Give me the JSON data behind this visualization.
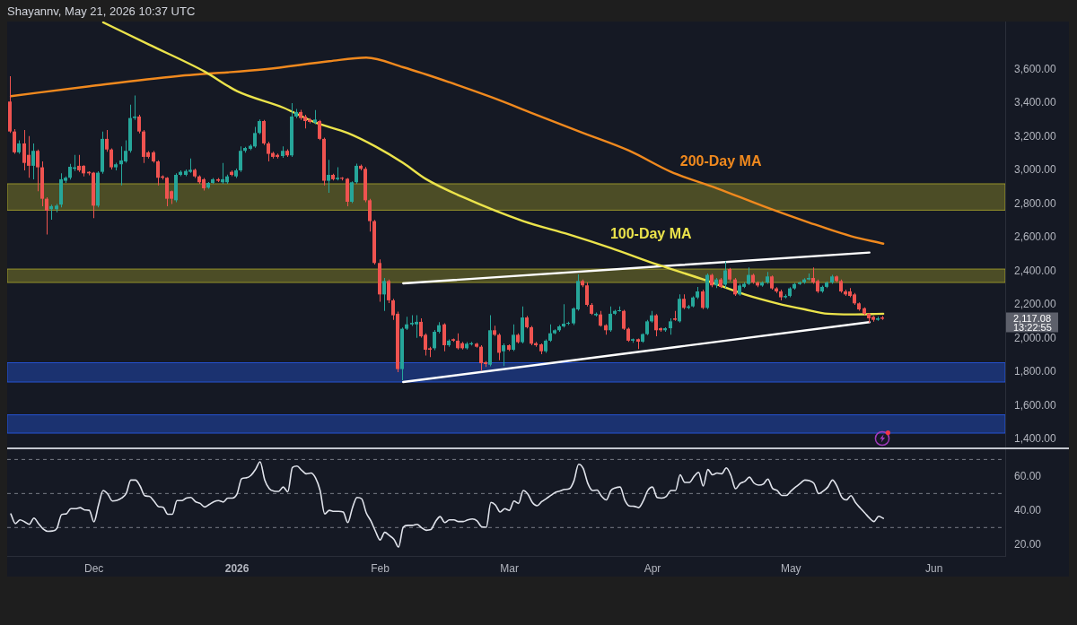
{
  "chart_data": [
    {
      "type": "candlestick",
      "x": [
        "2025-11-13",
        "2025-11-14",
        "2025-11-15",
        "2025-11-16",
        "2025-11-17",
        "2025-11-18",
        "2025-11-19",
        "2025-11-20",
        "2025-11-21",
        "2025-11-22",
        "2025-11-23",
        "2025-11-24",
        "2025-11-25",
        "2025-11-26",
        "2025-11-27",
        "2025-11-28",
        "2025-11-29",
        "2025-11-30",
        "2025-12-01",
        "2025-12-02",
        "2025-12-03",
        "2025-12-04",
        "2025-12-05",
        "2025-12-06",
        "2025-12-07",
        "2025-12-08",
        "2025-12-09",
        "2025-12-10",
        "2025-12-11",
        "2025-12-12",
        "2025-12-13",
        "2025-12-14",
        "2025-12-15",
        "2025-12-16",
        "2025-12-17",
        "2025-12-18",
        "2025-12-19",
        "2025-12-20",
        "2025-12-21",
        "2025-12-22",
        "2025-12-23",
        "2025-12-24",
        "2025-12-25",
        "2025-12-26",
        "2025-12-27",
        "2025-12-28",
        "2025-12-29",
        "2025-12-30",
        "2025-12-31",
        "2026-01-01",
        "2026-01-02",
        "2026-01-03",
        "2026-01-04",
        "2026-01-05",
        "2026-01-06",
        "2026-01-07",
        "2026-01-08",
        "2026-01-09",
        "2026-01-10",
        "2026-01-11",
        "2026-01-12",
        "2026-01-13",
        "2026-01-14",
        "2026-01-15",
        "2026-01-16",
        "2026-01-17",
        "2026-01-18",
        "2026-01-19",
        "2026-01-20",
        "2026-01-21",
        "2026-01-22",
        "2026-01-23",
        "2026-01-24",
        "2026-01-25",
        "2026-01-26",
        "2026-01-27",
        "2026-01-28",
        "2026-01-29",
        "2026-01-30",
        "2026-01-31",
        "2026-02-01",
        "2026-02-02",
        "2026-02-03",
        "2026-02-04",
        "2026-02-05",
        "2026-02-06",
        "2026-02-07",
        "2026-02-08",
        "2026-02-09",
        "2026-02-10",
        "2026-02-11",
        "2026-02-12",
        "2026-02-13",
        "2026-02-14",
        "2026-02-15",
        "2026-02-16",
        "2026-02-17",
        "2026-02-18",
        "2026-02-19",
        "2026-02-20",
        "2026-02-21",
        "2026-02-22",
        "2026-02-23",
        "2026-02-24",
        "2026-02-25",
        "2026-02-26",
        "2026-02-27",
        "2026-02-28",
        "2026-03-01",
        "2026-03-02",
        "2026-03-03",
        "2026-03-04",
        "2026-03-05",
        "2026-03-06",
        "2026-03-07",
        "2026-03-08",
        "2026-03-09",
        "2026-03-10",
        "2026-03-11",
        "2026-03-12",
        "2026-03-13",
        "2026-03-14",
        "2026-03-15",
        "2026-03-16",
        "2026-03-17",
        "2026-03-18",
        "2026-03-19",
        "2026-03-20",
        "2026-03-21",
        "2026-03-22",
        "2026-03-23",
        "2026-03-24",
        "2026-03-25",
        "2026-03-26",
        "2026-03-27",
        "2026-03-28",
        "2026-03-29",
        "2026-03-30",
        "2026-03-31",
        "2026-04-01",
        "2026-04-02",
        "2026-04-03",
        "2026-04-04",
        "2026-04-05",
        "2026-04-06",
        "2026-04-07",
        "2026-04-08",
        "2026-04-09",
        "2026-04-10",
        "2026-04-11",
        "2026-04-12",
        "2026-04-13",
        "2026-04-14",
        "2026-04-15",
        "2026-04-16",
        "2026-04-17",
        "2026-04-18",
        "2026-04-19",
        "2026-04-20",
        "2026-04-21",
        "2026-04-22",
        "2026-04-23",
        "2026-04-24",
        "2026-04-25",
        "2026-04-26",
        "2026-04-27",
        "2026-04-28",
        "2026-04-29",
        "2026-04-30",
        "2026-05-01",
        "2026-05-02",
        "2026-05-03",
        "2026-05-04",
        "2026-05-05",
        "2026-05-06",
        "2026-05-07",
        "2026-05-08",
        "2026-05-09",
        "2026-05-10",
        "2026-05-11",
        "2026-05-12",
        "2026-05-13",
        "2026-05-14",
        "2026-05-15",
        "2026-05-16",
        "2026-05-17",
        "2026-05-18",
        "2026-05-19",
        "2026-05-20",
        "2026-05-21"
      ],
      "ohlc": [
        [
          3409,
          3560,
          3222,
          3231
        ],
        [
          3231,
          3245,
          3098,
          3107
        ],
        [
          3107,
          3178,
          3098,
          3160
        ],
        [
          3160,
          3240,
          3000,
          3044
        ],
        [
          3092,
          3204,
          2956,
          3027
        ],
        [
          3027,
          3160,
          2947,
          3116
        ],
        [
          3116,
          3124,
          2876,
          3018
        ],
        [
          3018,
          3053,
          2787,
          2831
        ],
        [
          2831,
          2840,
          2618,
          2760
        ],
        [
          2769,
          2796,
          2707,
          2787
        ],
        [
          2769,
          2800,
          2750,
          2790
        ],
        [
          2796,
          2982,
          2780,
          2947
        ],
        [
          2938,
          2964,
          2925,
          2956
        ],
        [
          2956,
          3039,
          2945,
          3021
        ],
        [
          3009,
          3092,
          2996,
          3018
        ],
        [
          3027,
          3092,
          2990,
          3000
        ],
        [
          3027,
          3030,
          2964,
          2982
        ],
        [
          2991,
          2995,
          2970,
          2982
        ],
        [
          2986,
          2990,
          2716,
          2790
        ],
        [
          2790,
          2995,
          2780,
          2986
        ],
        [
          2991,
          3231,
          2980,
          3187
        ],
        [
          3187,
          3240,
          3110,
          3124
        ],
        [
          3124,
          3130,
          3005,
          3018
        ],
        [
          3018,
          3045,
          3000,
          3036
        ],
        [
          3036,
          3142,
          2911,
          3059
        ],
        [
          3053,
          3178,
          3045,
          3116
        ],
        [
          3116,
          3391,
          3105,
          3311
        ],
        [
          3311,
          3445,
          3300,
          3320
        ],
        [
          3320,
          3330,
          3220,
          3231
        ],
        [
          3231,
          3240,
          3044,
          3080
        ],
        [
          3107,
          3115,
          3070,
          3080
        ],
        [
          3107,
          3116,
          3045,
          3053
        ],
        [
          3053,
          3060,
          2911,
          2956
        ],
        [
          2964,
          2970,
          2945,
          2956
        ],
        [
          2956,
          2960,
          2787,
          2831
        ],
        [
          2876,
          2880,
          2800,
          2831
        ],
        [
          2822,
          2982,
          2810,
          2973
        ],
        [
          2973,
          3000,
          2965,
          2991
        ],
        [
          2973,
          3005,
          2965,
          2996
        ],
        [
          2991,
          3071,
          2985,
          3003
        ],
        [
          3003,
          3010,
          2955,
          2964
        ],
        [
          2964,
          2970,
          2920,
          2929
        ],
        [
          2947,
          2955,
          2880,
          2893
        ],
        [
          2897,
          2930,
          2890,
          2925
        ],
        [
          2925,
          2955,
          2920,
          2947
        ],
        [
          2947,
          2955,
          2930,
          2938
        ],
        [
          2929,
          3044,
          2920,
          2947
        ],
        [
          2929,
          2975,
          2920,
          2964
        ],
        [
          2991,
          3000,
          2965,
          2973
        ],
        [
          2964,
          3010,
          2955,
          3000
        ],
        [
          3000,
          3142,
          2990,
          3116
        ],
        [
          3116,
          3140,
          3105,
          3133
        ],
        [
          3128,
          3155,
          3120,
          3146
        ],
        [
          3142,
          3258,
          3135,
          3222
        ],
        [
          3222,
          3302,
          3215,
          3293
        ],
        [
          3293,
          3300,
          3150,
          3160
        ],
        [
          3160,
          3170,
          3053,
          3098
        ],
        [
          3103,
          3110,
          3070,
          3080
        ],
        [
          3092,
          3100,
          3070,
          3080
        ],
        [
          3085,
          3142,
          3075,
          3116
        ],
        [
          3116,
          3125,
          3080,
          3089
        ],
        [
          3089,
          3400,
          3080,
          3320
        ],
        [
          3320,
          3365,
          3310,
          3347
        ],
        [
          3347,
          3360,
          3300,
          3311
        ],
        [
          3320,
          3330,
          3249,
          3293
        ],
        [
          3302,
          3310,
          3280,
          3288
        ],
        [
          3284,
          3359,
          3275,
          3302
        ],
        [
          3293,
          3300,
          3180,
          3187
        ],
        [
          3187,
          3195,
          2911,
          2938
        ],
        [
          2938,
          3062,
          2867,
          2973
        ],
        [
          2973,
          2980,
          2940,
          2947
        ],
        [
          2947,
          3018,
          2940,
          2956
        ],
        [
          2956,
          2960,
          2940,
          2950
        ],
        [
          2950,
          2955,
          2787,
          2813
        ],
        [
          2813,
          2935,
          2805,
          2929
        ],
        [
          2929,
          3040,
          2920,
          3027
        ],
        [
          3027,
          3035,
          3000,
          3009
        ],
        [
          3009,
          3020,
          2810,
          2822
        ],
        [
          2822,
          2830,
          2636,
          2698
        ],
        [
          2698,
          2705,
          2440,
          2449
        ],
        [
          2449,
          2470,
          2218,
          2262
        ],
        [
          2262,
          2360,
          2164,
          2342
        ],
        [
          2342,
          2350,
          2210,
          2227
        ],
        [
          2227,
          2236,
          2111,
          2138
        ],
        [
          2147,
          2160,
          1800,
          1818
        ],
        [
          1818,
          2065,
          1752,
          2058
        ],
        [
          2058,
          2129,
          2050,
          2084
        ],
        [
          2084,
          2138,
          2075,
          2093
        ],
        [
          2084,
          2138,
          2004,
          2099
        ],
        [
          2099,
          2120,
          2005,
          2013
        ],
        [
          2022,
          2030,
          1898,
          1933
        ],
        [
          1942,
          1950,
          1889,
          1933
        ],
        [
          1942,
          2050,
          1930,
          2040
        ],
        [
          2040,
          2097,
          2030,
          2079
        ],
        [
          2084,
          2090,
          1924,
          1960
        ],
        [
          1960,
          1995,
          1950,
          1987
        ],
        [
          1996,
          2000,
          1980,
          1987
        ],
        [
          1987,
          2031,
          1935,
          1942
        ],
        [
          1972,
          1980,
          1935,
          1942
        ],
        [
          1942,
          1978,
          1935,
          1969
        ],
        [
          1965,
          1980,
          1958,
          1972
        ],
        [
          1969,
          1975,
          1945,
          1951
        ],
        [
          1951,
          1960,
          1809,
          1853
        ],
        [
          1859,
          1865,
          1830,
          1848
        ],
        [
          1844,
          2138,
          1835,
          2049
        ],
        [
          2049,
          2076,
          2015,
          2022
        ],
        [
          2022,
          2030,
          1871,
          1915
        ],
        [
          1924,
          1970,
          1836,
          1960
        ],
        [
          1960,
          1965,
          1925,
          1933
        ],
        [
          1933,
          2084,
          1925,
          2022
        ],
        [
          2022,
          2030,
          1970,
          1978
        ],
        [
          1978,
          2191,
          1970,
          2125
        ],
        [
          2125,
          2135,
          2060,
          2067
        ],
        [
          2067,
          2075,
          1960,
          1969
        ],
        [
          1972,
          1980,
          1950,
          1960
        ],
        [
          1965,
          1970,
          1907,
          1924
        ],
        [
          1924,
          1995,
          1915,
          1987
        ],
        [
          1987,
          2084,
          1980,
          2031
        ],
        [
          2031,
          2055,
          2025,
          2049
        ],
        [
          2049,
          2080,
          2040,
          2072
        ],
        [
          2072,
          2204,
          2065,
          2088
        ],
        [
          2088,
          2100,
          2080,
          2093
        ],
        [
          2090,
          2185,
          2080,
          2179
        ],
        [
          2173,
          2381,
          2165,
          2342
        ],
        [
          2342,
          2350,
          2305,
          2316
        ],
        [
          2316,
          2333,
          2190,
          2200
        ],
        [
          2200,
          2210,
          2140,
          2147
        ],
        [
          2138,
          2155,
          2130,
          2147
        ],
        [
          2143,
          2164,
          2070,
          2076
        ],
        [
          2079,
          2085,
          2022,
          2049
        ],
        [
          2049,
          2191,
          2040,
          2147
        ],
        [
          2147,
          2170,
          2140,
          2164
        ],
        [
          2164,
          2191,
          2160,
          2168
        ],
        [
          2164,
          2170,
          2050,
          2058
        ],
        [
          2058,
          2065,
          1980,
          1987
        ],
        [
          1987,
          2000,
          1975,
          1996
        ],
        [
          1996,
          2000,
          1937,
          1981
        ],
        [
          1981,
          2030,
          1975,
          2026
        ],
        [
          2026,
          2110,
          2020,
          2102
        ],
        [
          2102,
          2164,
          2095,
          2138
        ],
        [
          2138,
          2145,
          2013,
          2049
        ],
        [
          2061,
          2065,
          2040,
          2049
        ],
        [
          2049,
          2067,
          2040,
          2061
        ],
        [
          2061,
          2120,
          2022,
          2102
        ],
        [
          2120,
          2164,
          2105,
          2111
        ],
        [
          2102,
          2262,
          2095,
          2236
        ],
        [
          2236,
          2262,
          2175,
          2182
        ],
        [
          2182,
          2200,
          2175,
          2191
        ],
        [
          2191,
          2250,
          2185,
          2244
        ],
        [
          2244,
          2307,
          2235,
          2280
        ],
        [
          2280,
          2290,
          2175,
          2182
        ],
        [
          2182,
          2387,
          2175,
          2378
        ],
        [
          2378,
          2385,
          2305,
          2316
        ],
        [
          2316,
          2360,
          2300,
          2351
        ],
        [
          2351,
          2360,
          2300,
          2307
        ],
        [
          2320,
          2458,
          2300,
          2405
        ],
        [
          2413,
          2420,
          2340,
          2351
        ],
        [
          2351,
          2360,
          2253,
          2262
        ],
        [
          2262,
          2325,
          2255,
          2315
        ],
        [
          2307,
          2335,
          2300,
          2325
        ],
        [
          2325,
          2422,
          2318,
          2378
        ],
        [
          2378,
          2385,
          2325,
          2333
        ],
        [
          2333,
          2340,
          2305,
          2315
        ],
        [
          2315,
          2340,
          2308,
          2333
        ],
        [
          2333,
          2396,
          2325,
          2369
        ],
        [
          2369,
          2375,
          2290,
          2298
        ],
        [
          2298,
          2305,
          2270,
          2280
        ],
        [
          2280,
          2290,
          2227,
          2245
        ],
        [
          2245,
          2262,
          2238,
          2253
        ],
        [
          2253,
          2305,
          2245,
          2298
        ],
        [
          2298,
          2330,
          2290,
          2324
        ],
        [
          2324,
          2340,
          2318,
          2333
        ],
        [
          2333,
          2358,
          2325,
          2351
        ],
        [
          2351,
          2387,
          2345,
          2360
        ],
        [
          2360,
          2422,
          2325,
          2333
        ],
        [
          2342,
          2350,
          2270,
          2280
        ],
        [
          2280,
          2315,
          2272,
          2307
        ],
        [
          2307,
          2340,
          2300,
          2333
        ],
        [
          2333,
          2378,
          2325,
          2369
        ],
        [
          2369,
          2375,
          2335,
          2342
        ],
        [
          2342,
          2350,
          2272,
          2280
        ],
        [
          2280,
          2290,
          2253,
          2262
        ],
        [
          2280,
          2300,
          2245,
          2253
        ],
        [
          2262,
          2270,
          2200,
          2209
        ],
        [
          2209,
          2215,
          2165,
          2173
        ],
        [
          2180,
          2185,
          2140,
          2147
        ],
        [
          2147,
          2150,
          2093,
          2120
        ],
        [
          2129,
          2135,
          2100,
          2111
        ],
        [
          2111,
          2130,
          2105,
          2120
        ],
        [
          2125,
          2135,
          2110,
          2117.08
        ]
      ],
      "series": [
        {
          "name": "100-Day MA",
          "type": "line",
          "color": "#ebe34b",
          "x": [
            "2025-12-03",
            "2025-12-13",
            "2025-12-25",
            "2026-01-01",
            "2026-01-11",
            "2026-01-18",
            "2026-01-25",
            "2026-01-31",
            "2026-02-06",
            "2026-02-11",
            "2026-02-19",
            "2026-03-04",
            "2026-03-14",
            "2026-03-23",
            "2026-04-02",
            "2026-04-12",
            "2026-04-21",
            "2026-04-28",
            "2026-05-04",
            "2026-05-09",
            "2026-05-14",
            "2026-05-21"
          ],
          "values": [
            3880,
            3747,
            3587,
            3471,
            3373,
            3284,
            3222,
            3142,
            3044,
            2947,
            2840,
            2698,
            2618,
            2538,
            2440,
            2351,
            2262,
            2209,
            2173,
            2147,
            2143,
            2147
          ]
        },
        {
          "name": "200-Day MA",
          "type": "line",
          "color": "#f0891e",
          "x": [
            "2025-11-13",
            "2025-11-30",
            "2025-12-19",
            "2026-01-07",
            "2026-01-21",
            "2026-01-29",
            "2026-02-06",
            "2026-02-16",
            "2026-02-25",
            "2026-03-07",
            "2026-03-17",
            "2026-03-27",
            "2026-04-05",
            "2026-04-15",
            "2026-04-25",
            "2026-05-05",
            "2026-05-14",
            "2026-05-21"
          ],
          "values": [
            3441,
            3500,
            3560,
            3601,
            3649,
            3670,
            3613,
            3524,
            3436,
            3329,
            3222,
            3116,
            2991,
            2893,
            2787,
            2689,
            2609,
            2564
          ]
        },
        {
          "type": "line",
          "color": "#ffffff",
          "x": [
            "2026-02-06",
            "2026-05-18"
          ],
          "values": [
            2328,
            2511
          ]
        },
        {
          "type": "line",
          "color": "#ffffff",
          "x": [
            "2026-02-06",
            "2026-05-18"
          ],
          "values": [
            1741,
            2097
          ]
        }
      ],
      "bands": [
        {
          "axis": "y",
          "from": 2763,
          "to": 2920,
          "color": "#b5b02c"
        },
        {
          "axis": "y",
          "from": 2333,
          "to": 2413,
          "color": "#b5b02c"
        },
        {
          "axis": "y",
          "from": 1741,
          "to": 1856,
          "color": "#2962ff"
        },
        {
          "axis": "y",
          "from": 1437,
          "to": 1546,
          "color": "#2962ff"
        }
      ],
      "xlim": [
        "2025-11-12T05:00",
        "2026-06-16T10:00"
      ],
      "ylim": [
        1352,
        3885
      ],
      "yticks": [
        {
          "value": 1400,
          "label": "1,400.00"
        },
        {
          "value": 1600,
          "label": "1,600.00"
        },
        {
          "value": 1800,
          "label": "1,800.00"
        },
        {
          "value": 2000,
          "label": "2,000.00"
        },
        {
          "value": 2200,
          "label": "2,200.00"
        },
        {
          "value": 2400,
          "label": "2,400.00"
        },
        {
          "value": 2600,
          "label": "2,600.00"
        },
        {
          "value": 2800,
          "label": "2,800.00"
        },
        {
          "value": 3000,
          "label": "3,000.00"
        },
        {
          "value": 3200,
          "label": "3,200.00"
        },
        {
          "value": 3400,
          "label": "3,400.00"
        },
        {
          "value": 3600,
          "label": "3,600.00"
        }
      ],
      "tick_labels": "y",
      "grid": false,
      "legend": false,
      "marker": "none",
      "annotations": [
        "Shayannv, May 21, 2026 10:37 UTC",
        "2,117.08",
        "13:22:55"
      ]
    },
    {
      "type": "line",
      "x": [
        "2025-11-13",
        "2025-11-14",
        "2025-11-15",
        "2025-11-16",
        "2025-11-17",
        "2025-11-18",
        "2025-11-19",
        "2025-11-20",
        "2025-11-21",
        "2025-11-22",
        "2025-11-23",
        "2025-11-24",
        "2025-11-25",
        "2025-11-26",
        "2025-11-27",
        "2025-11-28",
        "2025-11-29",
        "2025-11-30",
        "2025-12-01",
        "2025-12-02",
        "2025-12-03",
        "2025-12-04",
        "2025-12-05",
        "2025-12-06",
        "2025-12-07",
        "2025-12-08",
        "2025-12-09",
        "2025-12-10",
        "2025-12-11",
        "2025-12-12",
        "2025-12-13",
        "2025-12-14",
        "2025-12-15",
        "2025-12-16",
        "2025-12-17",
        "2025-12-18",
        "2025-12-19",
        "2025-12-20",
        "2025-12-21",
        "2025-12-22",
        "2025-12-23",
        "2025-12-24",
        "2025-12-25",
        "2025-12-26",
        "2025-12-27",
        "2025-12-28",
        "2025-12-29",
        "2025-12-30",
        "2025-12-31",
        "2026-01-01",
        "2026-01-02",
        "2026-01-03",
        "2026-01-04",
        "2026-01-05",
        "2026-01-06",
        "2026-01-07",
        "2026-01-08",
        "2026-01-09",
        "2026-01-10",
        "2026-01-11",
        "2026-01-12",
        "2026-01-13",
        "2026-01-14",
        "2026-01-15",
        "2026-01-16",
        "2026-01-17",
        "2026-01-18",
        "2026-01-19",
        "2026-01-20",
        "2026-01-21",
        "2026-01-22",
        "2026-01-23",
        "2026-01-24",
        "2026-01-25",
        "2026-01-26",
        "2026-01-27",
        "2026-01-28",
        "2026-01-29",
        "2026-01-30",
        "2026-01-31",
        "2026-02-01",
        "2026-02-02",
        "2026-02-03",
        "2026-02-04",
        "2026-02-05",
        "2026-02-06",
        "2026-02-07",
        "2026-02-08",
        "2026-02-09",
        "2026-02-10",
        "2026-02-11",
        "2026-02-12",
        "2026-02-13",
        "2026-02-14",
        "2026-02-15",
        "2026-02-16",
        "2026-02-17",
        "2026-02-18",
        "2026-02-19",
        "2026-02-20",
        "2026-02-21",
        "2026-02-22",
        "2026-02-23",
        "2026-02-24",
        "2026-02-25",
        "2026-02-26",
        "2026-02-27",
        "2026-02-28",
        "2026-03-01",
        "2026-03-02",
        "2026-03-03",
        "2026-03-04",
        "2026-03-05",
        "2026-03-06",
        "2026-03-07",
        "2026-03-08",
        "2026-03-09",
        "2026-03-10",
        "2026-03-11",
        "2026-03-12",
        "2026-03-13",
        "2026-03-14",
        "2026-03-15",
        "2026-03-16",
        "2026-03-17",
        "2026-03-18",
        "2026-03-19",
        "2026-03-20",
        "2026-03-21",
        "2026-03-22",
        "2026-03-23",
        "2026-03-24",
        "2026-03-25",
        "2026-03-26",
        "2026-03-27",
        "2026-03-28",
        "2026-03-29",
        "2026-03-30",
        "2026-03-31",
        "2026-04-01",
        "2026-04-02",
        "2026-04-03",
        "2026-04-04",
        "2026-04-05",
        "2026-04-06",
        "2026-04-07",
        "2026-04-08",
        "2026-04-09",
        "2026-04-10",
        "2026-04-11",
        "2026-04-12",
        "2026-04-13",
        "2026-04-14",
        "2026-04-15",
        "2026-04-16",
        "2026-04-17",
        "2026-04-18",
        "2026-04-19",
        "2026-04-20",
        "2026-04-21",
        "2026-04-22",
        "2026-04-23",
        "2026-04-24",
        "2026-04-25",
        "2026-04-26",
        "2026-04-27",
        "2026-04-28",
        "2026-04-29",
        "2026-04-30",
        "2026-05-01",
        "2026-05-02",
        "2026-05-03",
        "2026-05-04",
        "2026-05-05",
        "2026-05-06",
        "2026-05-07",
        "2026-05-08",
        "2026-05-09",
        "2026-05-10",
        "2026-05-11",
        "2026-05-12",
        "2026-05-13",
        "2026-05-14",
        "2026-05-15",
        "2026-05-16",
        "2026-05-17",
        "2026-05-18",
        "2026-05-19",
        "2026-05-20",
        "2026-05-21"
      ],
      "series": [
        {
          "color": "#e0e3eb",
          "values": [
            38.0,
            32.3,
            34.5,
            33.3,
            31.9,
            35.6,
            32.3,
            29.2,
            27.8,
            28.0,
            29.6,
            37.6,
            38.0,
            41.1,
            41.1,
            41.7,
            40.3,
            40.1,
            33.3,
            43.2,
            51.8,
            49.7,
            45.6,
            46.0,
            47.3,
            50.1,
            57.9,
            57.9,
            54.4,
            48.7,
            48.3,
            45.6,
            42.3,
            41.9,
            37.8,
            37.8,
            45.8,
            45.8,
            47.3,
            47.7,
            45.2,
            44.2,
            42.1,
            43.6,
            45.2,
            45.8,
            45.0,
            47.3,
            47.3,
            49.7,
            58.7,
            59.2,
            60.6,
            64.1,
            68.6,
            58.0,
            52.8,
            51.4,
            51.2,
            53.8,
            51.0,
            65.3,
            66.1,
            63.7,
            61.6,
            62.0,
            59.2,
            51.8,
            38.0,
            40.1,
            39.5,
            39.5,
            39.1,
            32.9,
            41.5,
            47.7,
            46.9,
            38.6,
            33.9,
            27.8,
            22.7,
            27.2,
            25.3,
            23.1,
            18.5,
            30.2,
            31.3,
            31.3,
            31.9,
            29.8,
            28.4,
            28.8,
            33.5,
            36.4,
            32.9,
            34.5,
            34.5,
            33.5,
            33.5,
            34.5,
            35.0,
            33.9,
            30.4,
            30.2,
            44.8,
            43.2,
            39.1,
            41.1,
            40.1,
            45.6,
            44.2,
            51.8,
            49.7,
            44.6,
            42.8,
            45.2,
            47.0,
            48.9,
            50.7,
            51.5,
            52.4,
            52.8,
            57.5,
            67.2,
            64.7,
            55.9,
            51.8,
            52.0,
            48.3,
            46.2,
            51.8,
            53.4,
            53.8,
            46.2,
            42.7,
            42.5,
            41.7,
            45.6,
            51.8,
            53.8,
            47.7,
            47.3,
            48.3,
            51.8,
            51.8,
            61.0,
            56.5,
            56.5,
            60.0,
            62.4,
            54.4,
            64.1,
            61.0,
            62.0,
            61.6,
            65.1,
            60.6,
            52.8,
            55.9,
            57.1,
            59.6,
            56.1,
            54.9,
            55.5,
            58.5,
            53.0,
            51.8,
            48.9,
            48.9,
            51.4,
            53.8,
            55.9,
            57.9,
            57.5,
            55.9,
            49.9,
            51.4,
            53.8,
            57.9,
            54.2,
            47.9,
            46.2,
            48.7,
            44.6,
            41.5,
            38.6,
            35.6,
            33.5,
            36.6,
            35.4
          ]
        }
      ],
      "ref_lines": [
        {
          "axis": "y",
          "value": 70,
          "color": "#787b86",
          "line_style": "dashed"
        },
        {
          "axis": "y",
          "value": 50,
          "color": "#787b86",
          "line_style": "dashed"
        },
        {
          "axis": "y",
          "value": 30,
          "color": "#787b86",
          "line_style": "dashed"
        }
      ],
      "xlim": [
        "2025-11-12T05:00",
        "2026-06-16T10:00"
      ],
      "xticks": [
        {
          "value": "2025-12-01",
          "label": "Dec"
        },
        {
          "value": "2026-01-01",
          "label": "2026"
        },
        {
          "value": "2026-02-01",
          "label": "Feb"
        },
        {
          "value": "2026-03-01",
          "label": "Mar"
        },
        {
          "value": "2026-04-01",
          "label": "Apr"
        },
        {
          "value": "2026-05-01",
          "label": "May"
        },
        {
          "value": "2026-06-01",
          "label": "Jun"
        }
      ],
      "ylim": [
        13.3,
        76
      ],
      "yticks": [
        {
          "value": 20,
          "label": "20.00"
        },
        {
          "value": 40,
          "label": "40.00"
        },
        {
          "value": 60,
          "label": "60.00"
        }
      ],
      "grid": false,
      "legend": false,
      "marker": "none"
    }
  ]
}
